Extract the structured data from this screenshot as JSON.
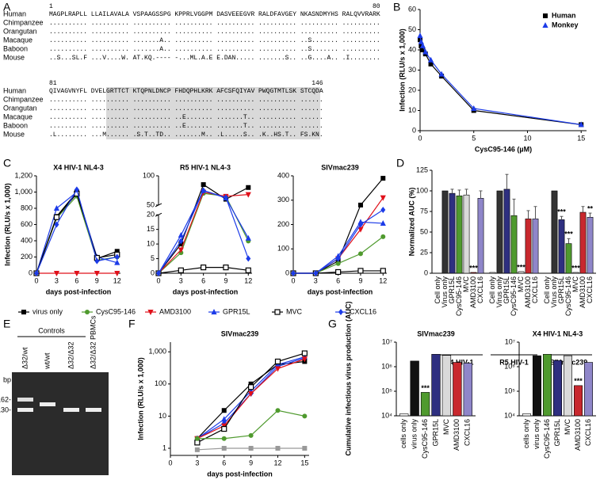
{
  "alignment": {
    "panel": "A",
    "species": [
      "Human",
      "Chimpanzee",
      "Orangutan",
      "Macaque",
      "Baboon",
      "Mouse"
    ],
    "blocks": [
      {
        "start": "1",
        "end": "80",
        "sequences": [
          "MAGPLRAPLL LLAILAVALA VSPAAGSSPG KPPRLVGGPM DASVEEEGVR RALDFAVGEY NKASNDMYHS RALQVVRARK",
          ".......... .......... .......... .......... .......... .......... .......... ..........",
          ".......... .......... .......... .......... .......... .......... .......... ..........",
          ".......... .......... .......A.. .......... .......... .......... ..S....... ..........",
          ".......... .......... .......A.. .......... .......... .......... ..S....... ..........",
          "..S...SL.F ...V....W. AT.KQ.---- -...ML.A.E E.DAN..... .......S.. ..G....A.. .I........"
        ]
      },
      {
        "start": "81",
        "end": "146",
        "sequences": [
          "QIVAGVNYFL DVELGRTTCT KTQPNLDNCP FHDQPHLKRK AFCSFQIYAV PWQGTMTLSK STCQDA",
          ".......... .......... .......... .......... .......... .......... ......",
          ".......... .......... .......... .......... .......... .......... ......",
          ".......... .......... .......... ..E....... .......T.. .......... ......",
          ".......... .......... .......... ..E....... .......T.. .......... ......",
          ".L........ ...M...... .S.T..TD.. .......M.. .L.....S.. .K..HS.T.. FS.KN."
        ]
      }
    ]
  },
  "gel": {
    "panel": "E",
    "group_label": "Controls",
    "lanes": [
      "Δ32/wt",
      "wt/wt",
      "Δ32/Δ32",
      "Δ32/Δ32 PBMCs"
    ],
    "size_unit": "bp",
    "size_markers": [
      "162-",
      "130-"
    ]
  },
  "chart_data": [
    {
      "panel": "B",
      "type": "line",
      "xlabel": "CysC95-146 (µM)",
      "ylabel": "Infection (RLU/s x 1,000)",
      "x": [
        0,
        0.1,
        0.25,
        0.5,
        1,
        2,
        5,
        15
      ],
      "series": [
        {
          "name": "Human",
          "color": "#000000",
          "marker": "square",
          "values": [
            45,
            42,
            40,
            38,
            33,
            27,
            10,
            3
          ]
        },
        {
          "name": "Monkey",
          "color": "#1c3be8",
          "marker": "triangle",
          "values": [
            47,
            44,
            42,
            39,
            35,
            28,
            11,
            3
          ]
        }
      ],
      "xlim": [
        0,
        15.5
      ],
      "ylim": [
        0,
        60
      ],
      "xticks": [
        0,
        5,
        10,
        15
      ],
      "yticks": [
        0,
        10,
        20,
        30,
        40,
        50,
        60
      ],
      "legend": "upper right"
    },
    {
      "panel": "C",
      "type": "line",
      "title": "X4 HIV-1 NL4-3",
      "xlabel": "days post-infection",
      "ylabel": "Infection (RLU/s x 1,000)",
      "x": [
        0,
        3,
        6,
        9,
        12
      ],
      "series": [
        {
          "name": "virus only",
          "color": "#000000",
          "marker": "square",
          "values": [
            0,
            700,
            1000,
            180,
            270
          ]
        },
        {
          "name": "CysC95-146",
          "color": "#4f9a2e",
          "marker": "circle",
          "values": [
            0,
            680,
            950,
            160,
            200
          ]
        },
        {
          "name": "AMD3100",
          "color": "#e0101a",
          "marker": "triangle-down",
          "values": [
            0,
            0,
            0,
            0,
            0
          ]
        },
        {
          "name": "GPR15L",
          "color": "#1c3be8",
          "marker": "triangle",
          "values": [
            0,
            800,
            1000,
            200,
            130
          ]
        },
        {
          "name": "MVC",
          "color": "#000000",
          "marker": "open-square",
          "values": [
            0,
            690,
            980,
            190,
            230
          ]
        },
        {
          "name": "CXCL16",
          "color": "#1c3be8",
          "marker": "diamond",
          "values": [
            0,
            600,
            1030,
            150,
            200
          ]
        }
      ],
      "xlim": [
        0,
        12.5
      ],
      "ylim": [
        0,
        1200
      ],
      "xticks": [
        0,
        3,
        6,
        9,
        12
      ],
      "yticks": [
        0,
        200,
        400,
        600,
        800,
        {
          "value": 1000,
          "label": "1,000"
        },
        {
          "value": 1200,
          "label": "1,200"
        }
      ],
      "legend": "bottom"
    },
    {
      "type": "line",
      "title": "R5 HIV-1 NL4-3",
      "xlabel": "days post-infection",
      "x": [
        0,
        3,
        6,
        9,
        12
      ],
      "series": [
        {
          "color": "#000000",
          "marker": "square",
          "values": [
            0,
            10,
            85,
            60,
            80
          ]
        },
        {
          "color": "#4f9a2e",
          "marker": "circle",
          "values": [
            0,
            7,
            70,
            65,
            11
          ]
        },
        {
          "color": "#e0101a",
          "marker": "triangle-down",
          "values": [
            0,
            8,
            72,
            65,
            68
          ]
        },
        {
          "color": "#1c3be8",
          "marker": "triangle",
          "values": [
            0,
            13,
            75,
            62,
            12
          ]
        },
        {
          "color": "#000000",
          "marker": "open-square",
          "values": [
            0,
            1,
            2,
            2,
            1
          ]
        },
        {
          "color": "#1c3be8",
          "marker": "diamond",
          "values": [
            0,
            11,
            75,
            63,
            5
          ]
        }
      ],
      "xlim": [
        0,
        12.5
      ],
      "ylim": [
        0,
        100
      ],
      "ybreak": [
        20,
        50
      ],
      "xticks": [
        0,
        3,
        6,
        9,
        12
      ],
      "yticks": [
        0,
        5,
        10,
        15,
        20,
        50,
        100
      ]
    },
    {
      "type": "line",
      "title": "SIVmac239",
      "xlabel": "days post-infection",
      "x": [
        0,
        3,
        6,
        9,
        12
      ],
      "series": [
        {
          "color": "#000000",
          "marker": "square",
          "values": [
            0,
            0,
            50,
            280,
            390
          ]
        },
        {
          "color": "#4f9a2e",
          "marker": "circle",
          "values": [
            0,
            0,
            40,
            80,
            150
          ]
        },
        {
          "color": "#e0101a",
          "marker": "triangle-down",
          "values": [
            0,
            0,
            60,
            180,
            310
          ]
        },
        {
          "color": "#1c3be8",
          "marker": "triangle",
          "values": [
            0,
            0,
            70,
            210,
            205
          ]
        },
        {
          "color": "#000000",
          "marker": "open-square",
          "values": [
            0,
            0,
            5,
            10,
            10
          ]
        },
        {
          "color": "#1c3be8",
          "marker": "diamond",
          "values": [
            0,
            0,
            60,
            200,
            260
          ]
        }
      ],
      "xlim": [
        0,
        12.5
      ],
      "ylim": [
        0,
        400
      ],
      "xticks": [
        0,
        3,
        6,
        9,
        12
      ],
      "yticks": [
        0,
        100,
        200,
        300,
        400
      ]
    },
    {
      "panel": "D",
      "type": "bar",
      "ylabel": "Normalized AUC (%)",
      "categories": [
        "Cell only",
        "Virus only",
        "GPR15L",
        "CysC95-146",
        "MVC",
        "AMD3100",
        "CXCL16"
      ],
      "colors": [
        "#ffffff",
        "#333333",
        "#2e2f80",
        "#4f9a2e",
        "#d9d9d9",
        "#c8282e",
        "#8f86c9"
      ],
      "groups": [
        {
          "name": "X4 HIV-1",
          "values": [
            0,
            100,
            97,
            94,
            95,
            1,
            91
          ],
          "errors": [
            null,
            null,
            5,
            7,
            7,
            null,
            9
          ],
          "annotations": [
            null,
            null,
            null,
            null,
            null,
            "***",
            null
          ]
        },
        {
          "name": "R5 HIV-1",
          "values": [
            1,
            100,
            102,
            70,
            2,
            66,
            66
          ],
          "errors": [
            null,
            null,
            18,
            20,
            null,
            10,
            15
          ],
          "annotations": [
            null,
            null,
            null,
            null,
            "***",
            null,
            null
          ]
        },
        {
          "name": "SIVmac239",
          "values": [
            0,
            100,
            65,
            36,
            1,
            74,
            68
          ],
          "errors": [
            null,
            null,
            4,
            6,
            null,
            7,
            5
          ],
          "annotations": [
            null,
            null,
            "***",
            "***",
            "***",
            null,
            "**"
          ]
        }
      ],
      "ylim": [
        0,
        125
      ],
      "yticks": [
        0,
        25,
        50,
        75,
        100,
        125
      ]
    },
    {
      "panel": "F",
      "type": "line",
      "title": "SIVmac239",
      "xlabel": "days post-infection",
      "ylabel": "Infection (RLU/s x 1,000)",
      "x": [
        3,
        6,
        9,
        12,
        15
      ],
      "log": true,
      "series": [
        {
          "color": "#000000",
          "marker": "square",
          "values": [
            2,
            15,
            100,
            400,
            500
          ]
        },
        {
          "color": "#1c3be8",
          "marker": "triangle",
          "values": [
            2,
            8,
            60,
            400,
            700
          ]
        },
        {
          "color": "#1c3be8",
          "marker": "diamond",
          "values": [
            2,
            6,
            50,
            350,
            650
          ]
        },
        {
          "color": "#e0101a",
          "marker": "triangle-down",
          "values": [
            2,
            5,
            50,
            300,
            600
          ]
        },
        {
          "color": "#000000",
          "marker": "open-square",
          "values": [
            1.5,
            4,
            80,
            500,
            900
          ]
        },
        {
          "color": "#4f9a2e",
          "marker": "circle",
          "values": [
            2,
            2,
            2.5,
            15,
            10
          ]
        },
        {
          "color": "#999999",
          "marker": "square",
          "values": [
            0.9,
            1,
            1,
            1,
            1
          ]
        }
      ],
      "xlim": [
        0,
        15.5
      ],
      "ylim": [
        0.6,
        2000
      ],
      "xticks": [
        0,
        3,
        6,
        9,
        12,
        15
      ],
      "yticks": [
        1,
        10,
        100,
        {
          "value": 1000,
          "label": "1,000"
        }
      ]
    },
    {
      "panel": "G",
      "type": "bar",
      "title": "SIVmac239",
      "ylabel": "Cumulative infectious virus production (AUC)",
      "log": true,
      "categories": [
        "cells only",
        "virus only",
        "CysC95-146",
        "GPR15L",
        "MVC",
        "AMD3100",
        "CXCL16"
      ],
      "colors": [
        "#ffffff",
        "#111111",
        "#4f9a2e",
        "#2e2f80",
        "#d9d9d9",
        "#c8282e",
        "#8f86c9"
      ],
      "values": [
        12000,
        1700000,
        90000,
        3200000,
        2900000,
        1500000,
        1400000
      ],
      "annotations": [
        null,
        null,
        "***",
        null,
        null,
        null,
        null
      ],
      "ylim": [
        10000,
        10000000
      ],
      "yticks": [
        {
          "value": 10000,
          "label": "10⁴"
        },
        {
          "value": 100000,
          "label": "10⁵"
        },
        {
          "value": 1000000,
          "label": "10⁶"
        },
        {
          "value": 10000000,
          "label": "10⁷"
        }
      ]
    },
    {
      "type": "bar",
      "title": "X4 HIV-1 NL4-3",
      "log": true,
      "categories": [
        "cells only",
        "virus only",
        "CysC95-146",
        "GPR15L",
        "MVC",
        "AMD3100",
        "CXCL16"
      ],
      "colors": [
        "#ffffff",
        "#111111",
        "#4f9a2e",
        "#2e2f80",
        "#d9d9d9",
        "#c8282e",
        "#8f86c9"
      ],
      "values": [
        12000,
        2800000,
        3200000,
        1800000,
        2800000,
        170000,
        1500000
      ],
      "annotations": [
        null,
        null,
        null,
        null,
        null,
        "***",
        null
      ],
      "ylim": [
        10000,
        10000000
      ],
      "yticks": [
        {
          "value": 10000,
          "label": "10⁴"
        },
        {
          "value": 100000,
          "label": "10⁵"
        },
        {
          "value": 1000000,
          "label": "10⁶"
        },
        {
          "value": 10000000,
          "label": "10⁷"
        }
      ]
    }
  ]
}
